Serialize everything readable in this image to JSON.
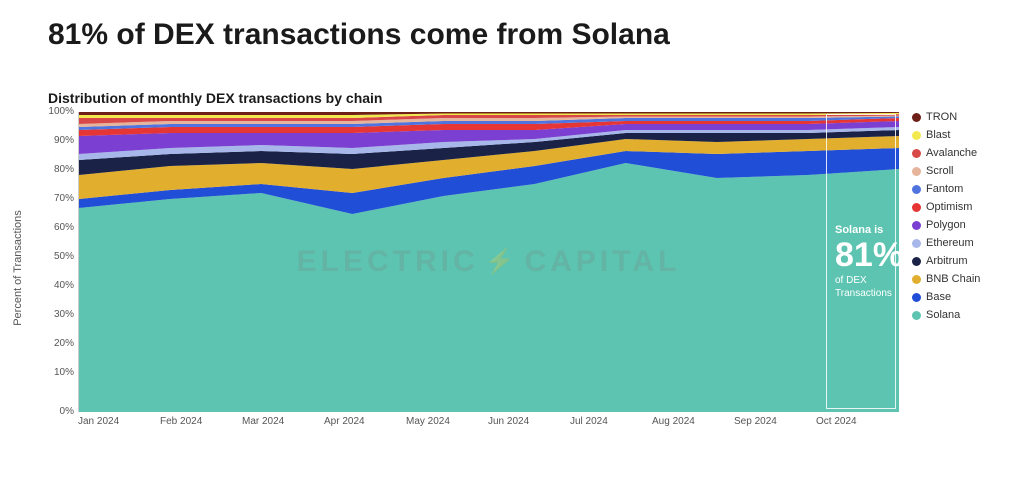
{
  "title": "81% of DEX transactions come from Solana",
  "subtitle": "Distribution of monthly DEX transactions by chain",
  "ylabel": "Percent of Transactions",
  "watermark_left": "ELECTRIC",
  "watermark_right": "CAPITAL",
  "callout": {
    "line1": "Solana is",
    "line2": "81%",
    "line3a": "of DEX",
    "line3b": "Transactions"
  },
  "chart": {
    "type": "stacked-area-100",
    "ylim": [
      0,
      100
    ],
    "ytick_step": 10,
    "background_color": "#ffffff",
    "grid_color": "#e0e0e0",
    "months": [
      "Jan 2024",
      "Feb 2024",
      "Mar 2024",
      "Apr 2024",
      "May 2024",
      "Jun 2024",
      "Jul 2024",
      "Aug 2024",
      "Sep 2024",
      "Oct 2024"
    ],
    "series": [
      {
        "name": "Solana",
        "color": "#5cc4b0",
        "values": [
          68,
          71,
          73,
          66,
          72,
          76,
          83,
          78,
          79,
          81
        ]
      },
      {
        "name": "Base",
        "color": "#214ed6",
        "values": [
          3,
          3,
          3,
          7,
          6,
          6,
          4,
          8,
          8,
          7
        ]
      },
      {
        "name": "BNB Chain",
        "color": "#e2ae2e",
        "values": [
          8,
          8,
          7,
          8,
          6,
          5,
          4,
          4,
          4,
          4
        ]
      },
      {
        "name": "Arbitrum",
        "color": "#1a2347",
        "values": [
          5,
          4,
          4,
          5,
          4,
          3,
          2,
          3,
          2,
          2
        ]
      },
      {
        "name": "Ethereum",
        "color": "#a7b7ea",
        "values": [
          2,
          2,
          2,
          2,
          2,
          1,
          1,
          1,
          1,
          1
        ]
      },
      {
        "name": "Polygon",
        "color": "#7b3fd1",
        "values": [
          6,
          5,
          4,
          5,
          4,
          3,
          2,
          2,
          2,
          2
        ]
      },
      {
        "name": "Optimism",
        "color": "#e63535",
        "values": [
          2,
          2,
          2,
          2,
          2,
          2,
          1,
          1,
          1,
          1
        ]
      },
      {
        "name": "Fantom",
        "color": "#4f74e0",
        "values": [
          1,
          1,
          1,
          1,
          1,
          1,
          1,
          1,
          1,
          0.5
        ]
      },
      {
        "name": "Scroll",
        "color": "#e5b49a",
        "values": [
          1,
          1,
          1,
          1,
          1,
          1,
          0.5,
          0.5,
          0.5,
          0.3
        ]
      },
      {
        "name": "Avalanche",
        "color": "#d94848",
        "values": [
          2,
          1,
          1,
          1,
          1,
          1,
          0.5,
          0.5,
          0.5,
          0.5
        ]
      },
      {
        "name": "Blast",
        "color": "#f2e94e",
        "values": [
          1,
          1,
          1,
          1,
          0.5,
          0.5,
          0.5,
          0.5,
          0.5,
          0.4
        ]
      },
      {
        "name": "TRON",
        "color": "#6d1f18",
        "values": [
          1,
          1,
          1,
          1,
          0.5,
          0.5,
          0.5,
          0.5,
          0.5,
          0.3
        ]
      }
    ],
    "legend_order": [
      "TRON",
      "Blast",
      "Avalanche",
      "Scroll",
      "Fantom",
      "Optimism",
      "Polygon",
      "Ethereum",
      "Arbitrum",
      "BNB Chain",
      "Base",
      "Solana"
    ]
  }
}
